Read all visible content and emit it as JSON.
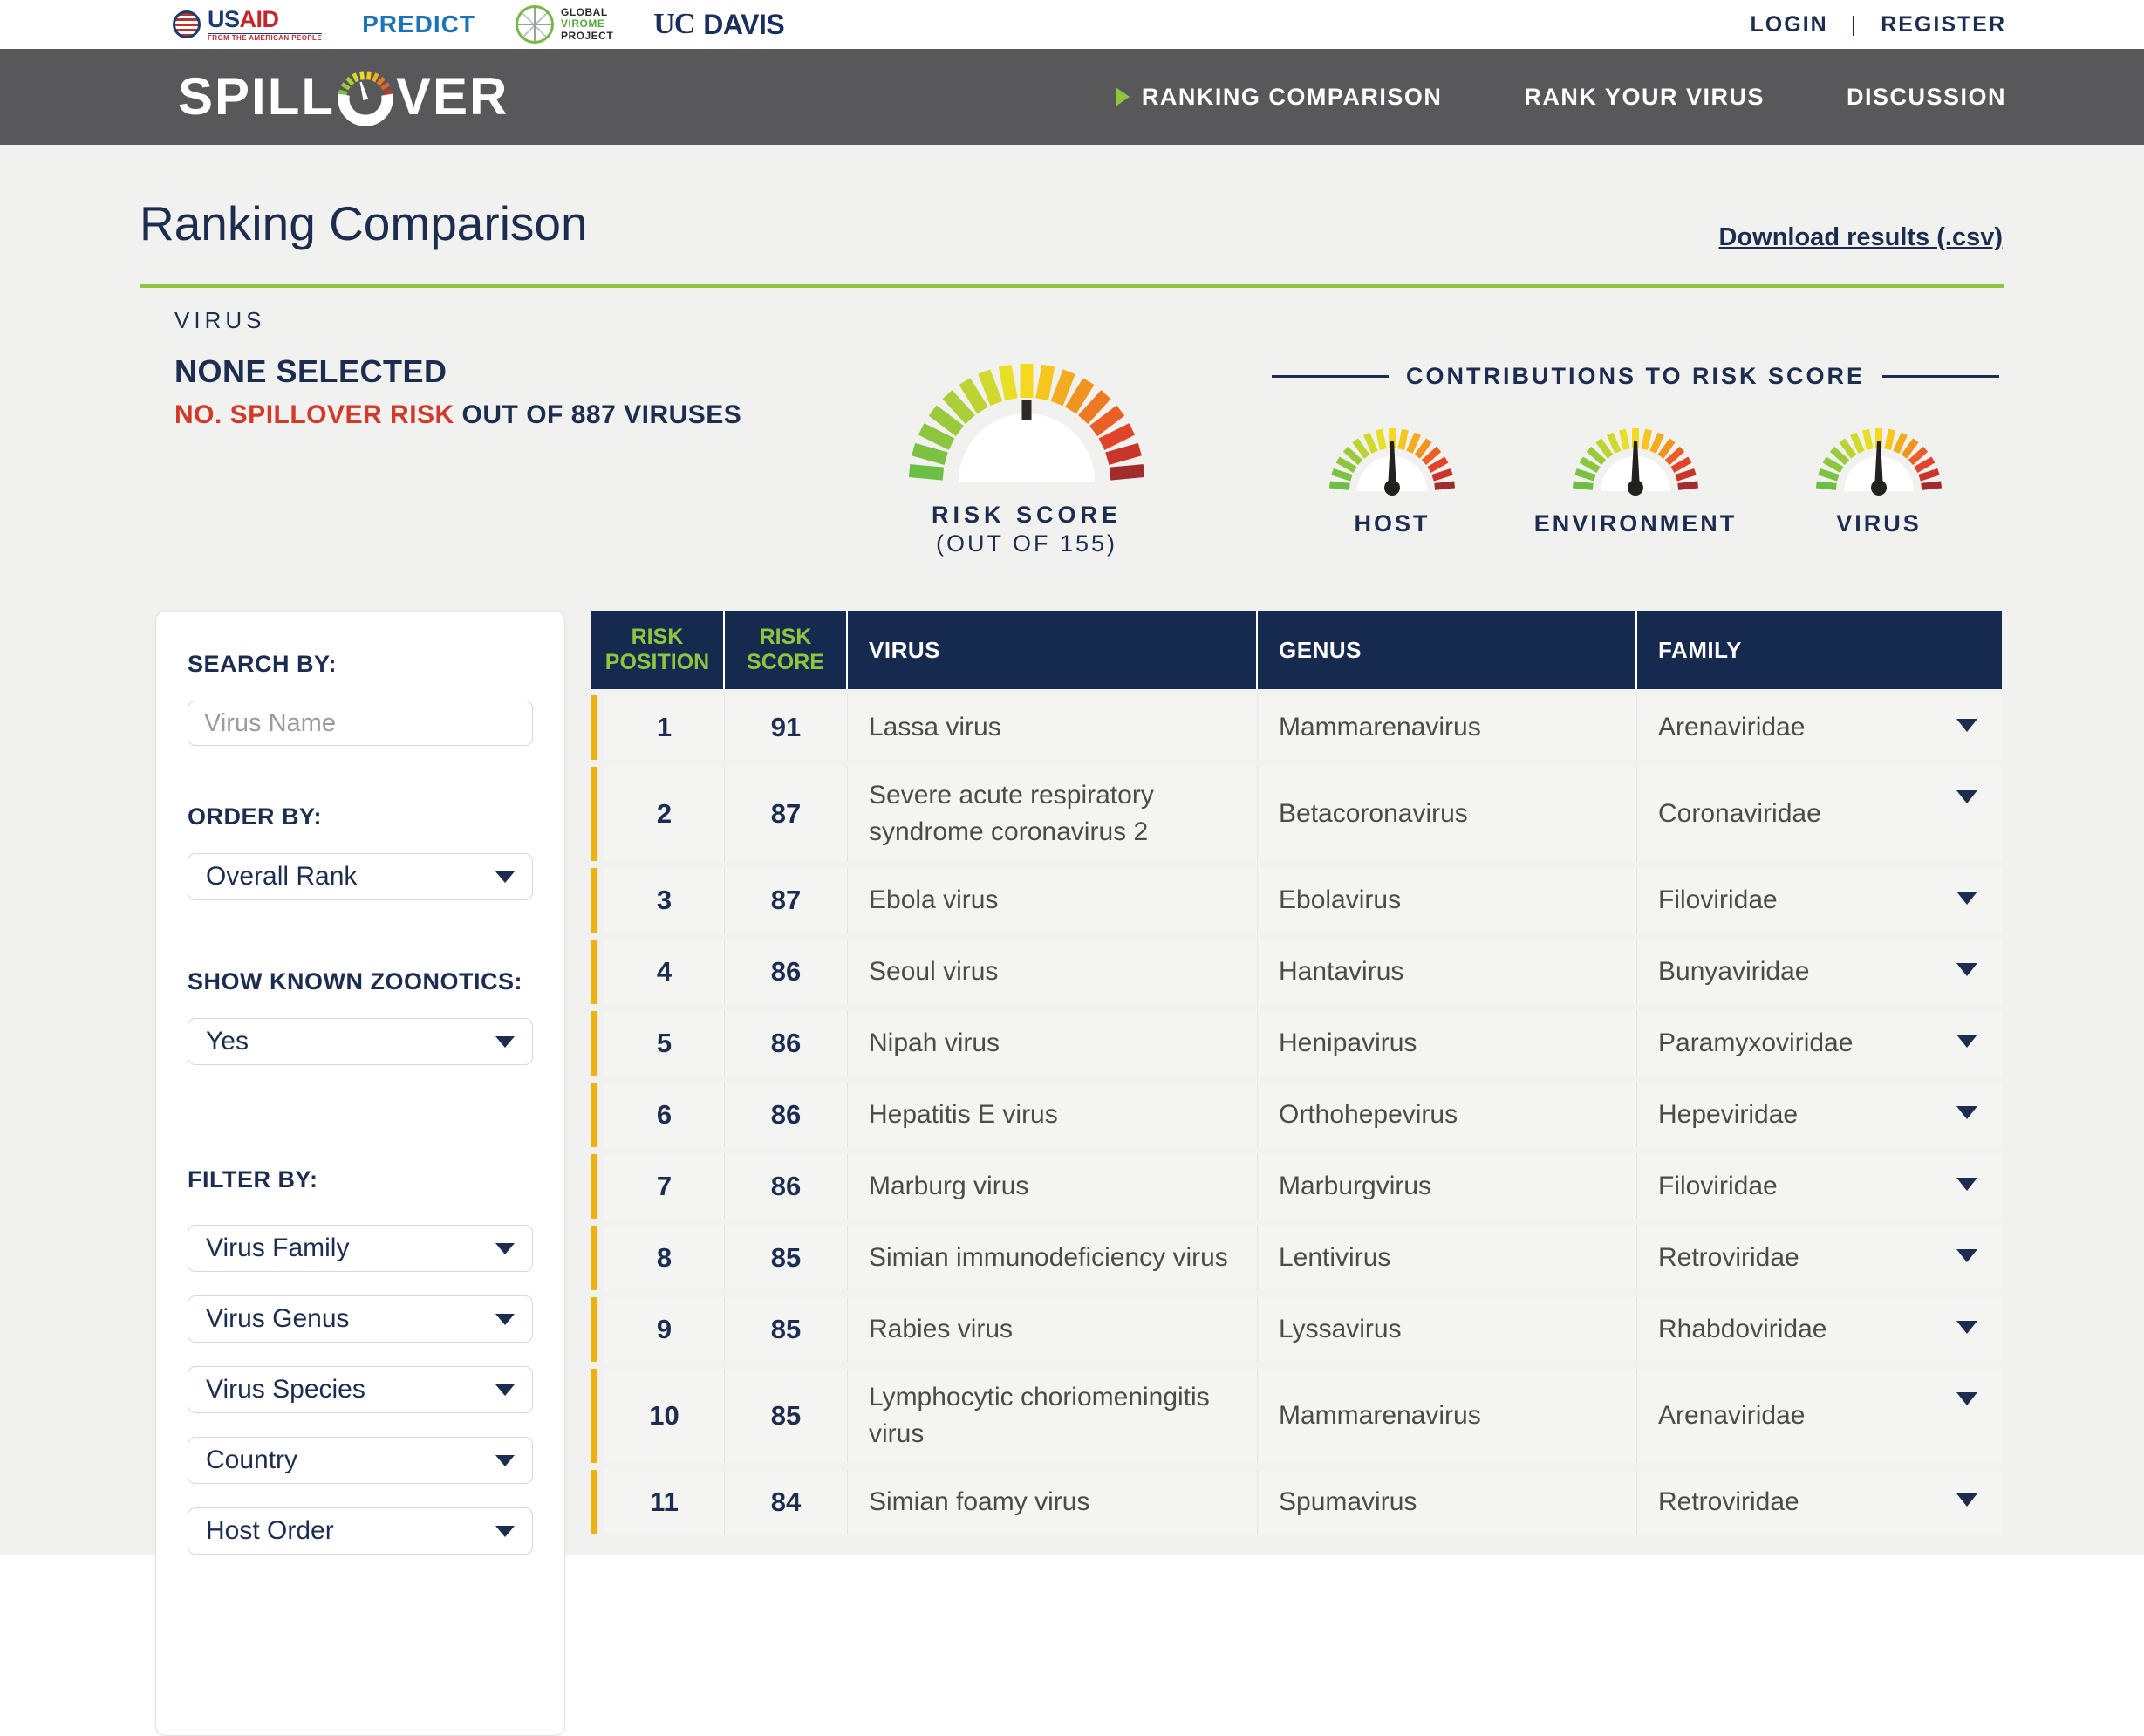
{
  "topbar": {
    "usaid": {
      "word_us": "US",
      "word_aid": "AID",
      "tagline": "FROM THE AMERICAN PEOPLE"
    },
    "predict": "PREDICT",
    "gvp": {
      "line1": "GLOBAL",
      "line2": "VIROME",
      "line3": "PROJECT"
    },
    "ucdavis": {
      "uc": "UC",
      "davis": "DAVIS"
    },
    "login": "LOGIN",
    "separator": "|",
    "register": "REGISTER"
  },
  "nav": {
    "brand_left": "SPILL",
    "brand_right": "VER",
    "items": [
      {
        "label": "RANKING COMPARISON",
        "active": true
      },
      {
        "label": "RANK YOUR VIRUS",
        "active": false
      },
      {
        "label": "DISCUSSION",
        "active": false
      }
    ]
  },
  "page": {
    "title": "Ranking Comparison",
    "download_link": "Download results (.csv)"
  },
  "virus_panel": {
    "label": "VIRUS",
    "selected": "NONE SELECTED",
    "risk_red": "NO. SPILLOVER RISK",
    "risk_rest": " OUT OF 887 VIRUSES",
    "gauge_label_line1": "RISK SCORE",
    "gauge_label_line2": "(OUT OF 155)"
  },
  "contributions": {
    "title": "CONTRIBUTIONS TO RISK SCORE",
    "gauges": [
      {
        "label": "HOST"
      },
      {
        "label": "ENVIRONMENT"
      },
      {
        "label": "VIRUS"
      }
    ]
  },
  "sidebar": {
    "search_by_label": "SEARCH BY:",
    "search_placeholder": "Virus Name",
    "order_by_label": "ORDER BY:",
    "order_value": "Overall Rank",
    "zoonotics_label": "SHOW KNOWN ZOONOTICS:",
    "zoonotics_value": "Yes",
    "filter_by_label": "FILTER BY:",
    "filters": [
      "Virus Family",
      "Virus Genus",
      "Virus Species",
      "Country",
      "Host Order"
    ]
  },
  "table": {
    "columns": [
      "RISK POSITION",
      "RISK SCORE",
      "VIRUS",
      "GENUS",
      "FAMILY"
    ],
    "rows": [
      {
        "position": "1",
        "score": "91",
        "virus": "Lassa virus",
        "genus": "Mammarenavirus",
        "family": "Arenaviridae"
      },
      {
        "position": "2",
        "score": "87",
        "virus": "Severe acute respiratory syndrome coronavirus 2",
        "genus": "Betacoronavirus",
        "family": "Coronaviridae"
      },
      {
        "position": "3",
        "score": "87",
        "virus": "Ebola virus",
        "genus": "Ebolavirus",
        "family": "Filoviridae"
      },
      {
        "position": "4",
        "score": "86",
        "virus": "Seoul virus",
        "genus": "Hantavirus",
        "family": "Bunyaviridae"
      },
      {
        "position": "5",
        "score": "86",
        "virus": "Nipah virus",
        "genus": "Henipavirus",
        "family": "Paramyxoviridae"
      },
      {
        "position": "6",
        "score": "86",
        "virus": "Hepatitis E virus",
        "genus": "Orthohepevirus",
        "family": "Hepeviridae"
      },
      {
        "position": "7",
        "score": "86",
        "virus": "Marburg virus",
        "genus": "Marburgvirus",
        "family": "Filoviridae"
      },
      {
        "position": "8",
        "score": "85",
        "virus": "Simian immunodeficiency virus",
        "genus": "Lentivirus",
        "family": "Retroviridae"
      },
      {
        "position": "9",
        "score": "85",
        "virus": "Rabies virus",
        "genus": "Lyssavirus",
        "family": "Rhabdoviridae"
      },
      {
        "position": "10",
        "score": "85",
        "virus": "Lymphocytic choriomeningitis virus",
        "genus": "Mammarenavirus",
        "family": "Arenaviridae"
      },
      {
        "position": "11",
        "score": "84",
        "virus": "Simian foamy virus",
        "genus": "Spumavirus",
        "family": "Retroviridae"
      }
    ]
  },
  "colors": {
    "navy": "#1d2d50",
    "table_header_bg": "#16294e",
    "green": "#8dc63f",
    "divider_green": "#8bc53f",
    "red": "#d03a2b",
    "yellow_accent": "#efb110",
    "nav_gray": "#58585a",
    "page_bg": "#f1f1ef",
    "gauge_palette": [
      "#6cbe45",
      "#7cc242",
      "#8cc63f",
      "#9aca3c",
      "#aacf38",
      "#bdd334",
      "#d2d92e",
      "#e8e026",
      "#f5d920",
      "#f6c51e",
      "#f3ab1f",
      "#f09420",
      "#ed7a23",
      "#e95f26",
      "#e04529",
      "#c9352b",
      "#a02c2e"
    ]
  }
}
